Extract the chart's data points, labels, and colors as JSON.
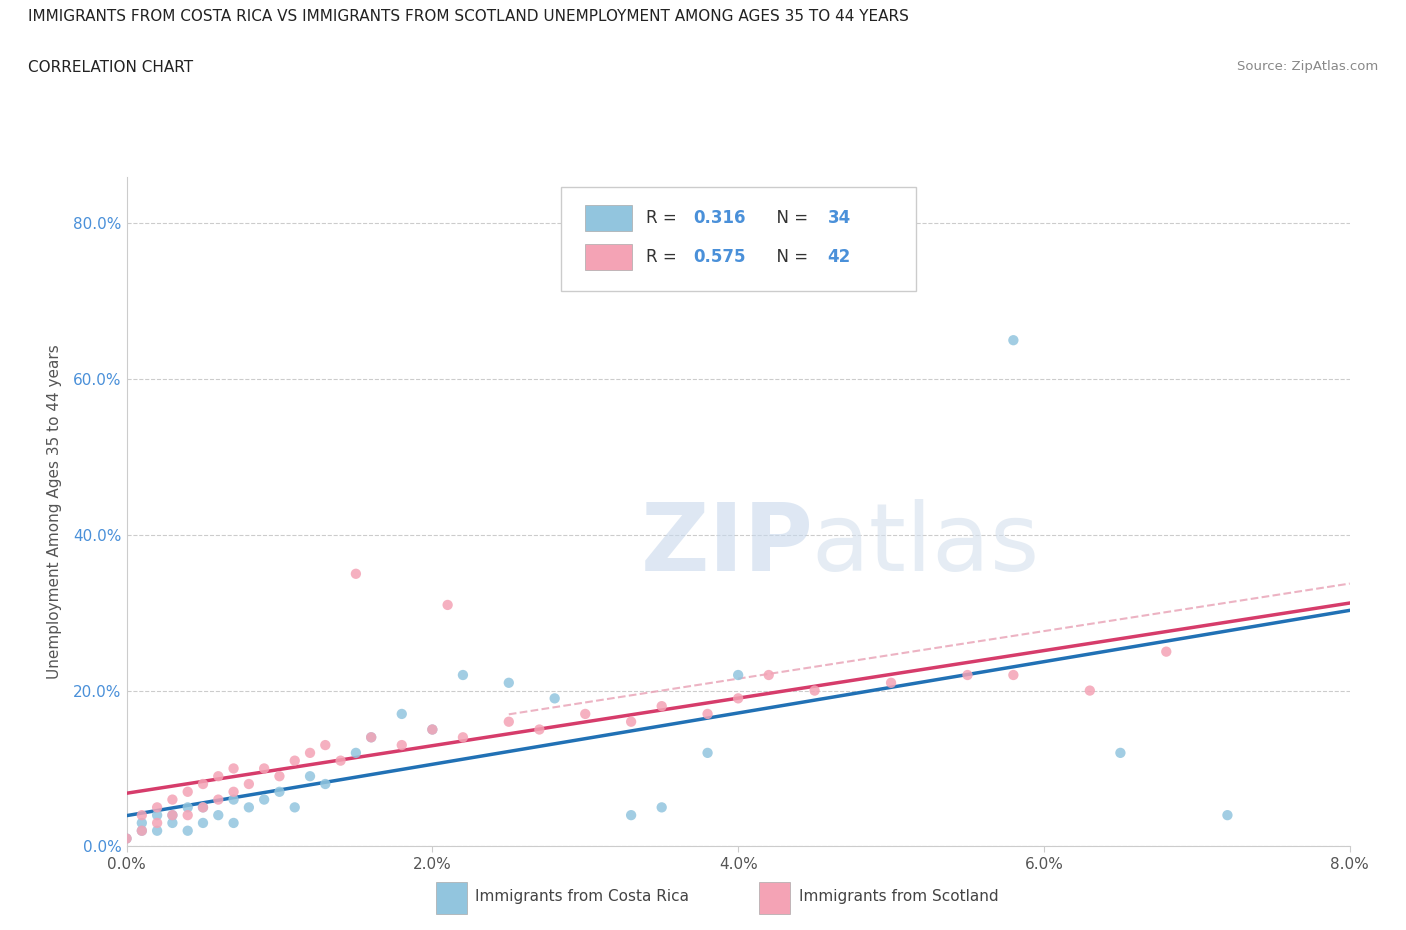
{
  "title_line1": "IMMIGRANTS FROM COSTA RICA VS IMMIGRANTS FROM SCOTLAND UNEMPLOYMENT AMONG AGES 35 TO 44 YEARS",
  "title_line2": "CORRELATION CHART",
  "source_text": "Source: ZipAtlas.com",
  "ylabel": "Unemployment Among Ages 35 to 44 years",
  "xlim": [
    0.0,
    0.08
  ],
  "ylim": [
    0.0,
    0.86
  ],
  "xtick_labels": [
    "0.0%",
    "2.0%",
    "4.0%",
    "6.0%",
    "8.0%"
  ],
  "xtick_values": [
    0.0,
    0.02,
    0.04,
    0.06,
    0.08
  ],
  "ytick_labels": [
    "0.0%",
    "20.0%",
    "40.0%",
    "60.0%",
    "80.0%"
  ],
  "ytick_values": [
    0.0,
    0.2,
    0.4,
    0.6,
    0.8
  ],
  "watermark_zip": "ZIP",
  "watermark_atlas": "atlas",
  "color_blue": "#92c5de",
  "color_pink": "#f4a3b5",
  "line_blue": "#2171b5",
  "line_pink": "#d63c6b",
  "line_dashed_color": "#e8a0b4",
  "R_blue": 0.316,
  "N_blue": 34,
  "R_pink": 0.575,
  "N_pink": 42,
  "legend_label_blue": "Immigrants from Costa Rica",
  "legend_label_pink": "Immigrants from Scotland",
  "blue_x": [
    0.0,
    0.001,
    0.001,
    0.002,
    0.002,
    0.003,
    0.003,
    0.004,
    0.004,
    0.005,
    0.005,
    0.006,
    0.007,
    0.007,
    0.008,
    0.009,
    0.01,
    0.011,
    0.012,
    0.013,
    0.015,
    0.016,
    0.018,
    0.02,
    0.022,
    0.025,
    0.028,
    0.033,
    0.035,
    0.038,
    0.04,
    0.058,
    0.065,
    0.072
  ],
  "blue_y": [
    0.01,
    0.02,
    0.03,
    0.02,
    0.04,
    0.03,
    0.04,
    0.02,
    0.05,
    0.03,
    0.05,
    0.04,
    0.06,
    0.03,
    0.05,
    0.06,
    0.07,
    0.05,
    0.09,
    0.08,
    0.12,
    0.14,
    0.17,
    0.15,
    0.22,
    0.21,
    0.19,
    0.04,
    0.05,
    0.12,
    0.22,
    0.65,
    0.12,
    0.04
  ],
  "pink_x": [
    0.0,
    0.001,
    0.001,
    0.002,
    0.002,
    0.003,
    0.003,
    0.004,
    0.004,
    0.005,
    0.005,
    0.006,
    0.006,
    0.007,
    0.007,
    0.008,
    0.009,
    0.01,
    0.011,
    0.012,
    0.013,
    0.014,
    0.015,
    0.016,
    0.018,
    0.02,
    0.021,
    0.022,
    0.025,
    0.027,
    0.03,
    0.033,
    0.035,
    0.038,
    0.04,
    0.042,
    0.045,
    0.05,
    0.055,
    0.058,
    0.063,
    0.068
  ],
  "pink_y": [
    0.01,
    0.02,
    0.04,
    0.03,
    0.05,
    0.04,
    0.06,
    0.04,
    0.07,
    0.05,
    0.08,
    0.06,
    0.09,
    0.07,
    0.1,
    0.08,
    0.1,
    0.09,
    0.11,
    0.12,
    0.13,
    0.11,
    0.35,
    0.14,
    0.13,
    0.15,
    0.31,
    0.14,
    0.16,
    0.15,
    0.17,
    0.16,
    0.18,
    0.17,
    0.19,
    0.22,
    0.2,
    0.21,
    0.22,
    0.22,
    0.2,
    0.25
  ]
}
